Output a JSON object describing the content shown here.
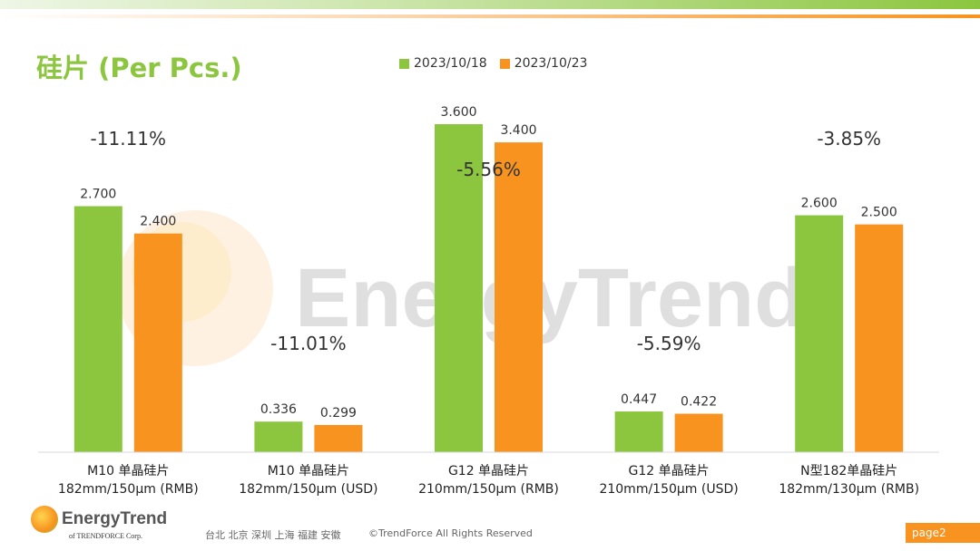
{
  "header": {
    "title": "硅片 (Per Pcs.)"
  },
  "colors": {
    "series1": "#8cc63f",
    "series2": "#f7931e",
    "title": "#8cc63f"
  },
  "chart_data": {
    "type": "bar",
    "categories": [
      [
        "M10 单晶硅片",
        "182mm/150μm (RMB)"
      ],
      [
        "M10 单晶硅片",
        "182mm/150μm (USD)"
      ],
      [
        "G12 单晶硅片",
        "210mm/150μm  (RMB)"
      ],
      [
        "G12 单晶硅片",
        "210mm/150μm  (USD)"
      ],
      [
        "N型182单晶硅片",
        "182mm/130μm (RMB)"
      ]
    ],
    "series": [
      {
        "name": "2023/10/18",
        "values": [
          2.7,
          0.336,
          3.6,
          0.447,
          2.6
        ],
        "labels": [
          "2.700",
          "0.336",
          "3.600",
          "0.447",
          "2.600"
        ]
      },
      {
        "name": "2023/10/23",
        "values": [
          2.4,
          0.299,
          3.4,
          0.422,
          2.5
        ],
        "labels": [
          "2.400",
          "0.299",
          "3.400",
          "0.422",
          "2.500"
        ]
      }
    ],
    "annotations": [
      "-11.11%",
      "-11.01%",
      "-5.56%",
      "-5.59%",
      "-3.85%"
    ],
    "ylim": [
      0,
      3.6
    ],
    "legend": "top",
    "grid": false
  },
  "watermark": "EnergyTrend",
  "footer": {
    "logo_text": "EnergyTrend",
    "logo_sub": "of TRENDFORCE Corp.",
    "cities": "台北  北京  深圳  上海  福建  安徽",
    "copyright": "©TrendForce All Rights Reserved",
    "page": "page2"
  }
}
